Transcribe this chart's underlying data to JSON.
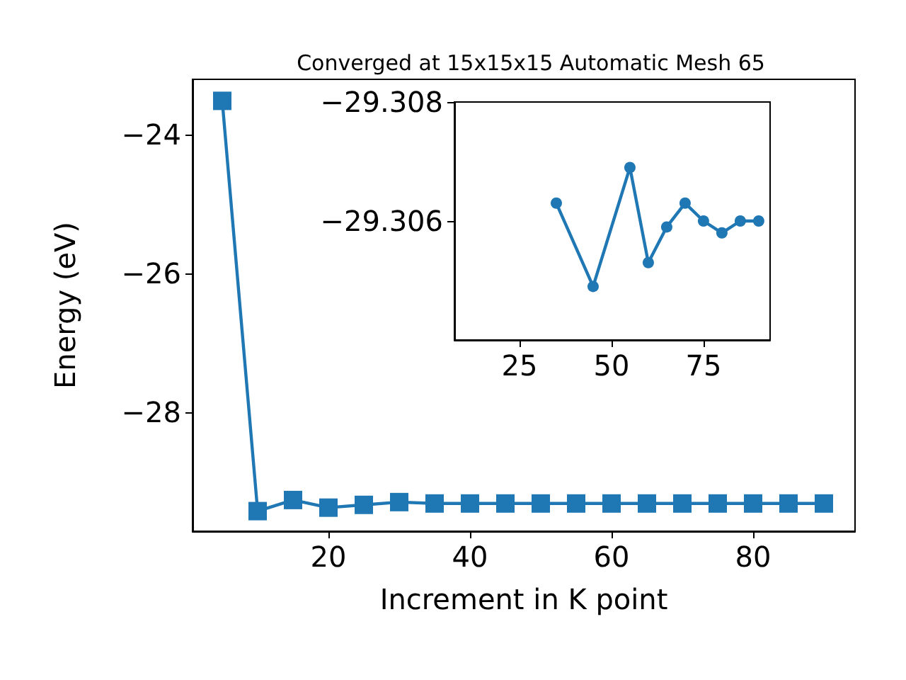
{
  "chart_data": [
    {
      "type": "line",
      "title": "Converged at 15x15x15 Automatic Mesh 65",
      "xlabel": "Increment in K point",
      "ylabel": "Energy (eV)",
      "x": [
        5,
        10,
        15,
        20,
        25,
        30,
        35,
        40,
        45,
        50,
        55,
        60,
        65,
        70,
        75,
        80,
        85,
        90
      ],
      "series": [
        {
          "color": "#1f77b4",
          "values": [
            -23.51,
            -29.42,
            -29.26,
            -29.37,
            -29.33,
            -29.29,
            -29.31,
            -29.31,
            -29.31,
            -29.31,
            -29.31,
            -29.31,
            -29.31,
            -29.31,
            -29.31,
            -29.31,
            -29.31,
            -29.31
          ]
        }
      ],
      "xlim": [
        0.8,
        94.4
      ],
      "xticks": [
        20,
        40,
        60,
        80
      ],
      "ylim": [
        -29.71,
        -23.2
      ],
      "yticks": [
        -24,
        -26,
        -28
      ],
      "marker": "square",
      "line_style": "solid"
    },
    {
      "type": "line",
      "x": [
        35,
        45,
        55,
        60,
        65,
        70,
        75,
        80,
        85,
        90
      ],
      "series": [
        {
          "color": "#1f77b4",
          "values": [
            -29.3063,
            -29.3049,
            -29.3069,
            -29.3053,
            -29.3059,
            -29.3063,
            -29.306,
            -29.3058,
            -29.306,
            -29.306
          ]
        }
      ],
      "xlim": [
        7.3,
        93.1
      ],
      "xticks": [
        25,
        50,
        75
      ],
      "ylim": [
        -29.304,
        -29.308
      ],
      "yticks": [
        -29.308,
        -29.306
      ],
      "marker": "circle",
      "line_style": "solid"
    }
  ]
}
